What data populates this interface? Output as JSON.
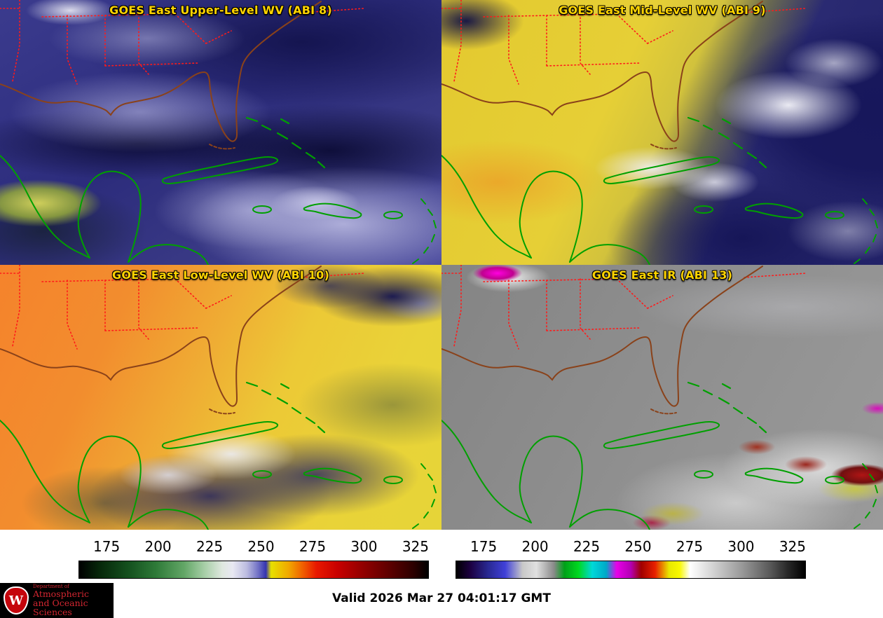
{
  "panels": [
    {
      "id": "abi8",
      "title": "GOES East Upper-Level WV (ABI 8)"
    },
    {
      "id": "abi9",
      "title": "GOES East Mid-Level WV (ABI 9)"
    },
    {
      "id": "abi10",
      "title": "GOES East Low-Level WV (ABI 10)"
    },
    {
      "id": "abi13",
      "title": "GOES East IR (ABI 13)"
    }
  ],
  "colorbars": [
    {
      "id": "wv",
      "ticks": [
        "175",
        "200",
        "225",
        "250",
        "275",
        "300",
        "325"
      ]
    },
    {
      "id": "ir",
      "ticks": [
        "175",
        "200",
        "225",
        "250",
        "275",
        "300",
        "325"
      ]
    }
  ],
  "footer": {
    "valid_time": "Valid 2026 Mar 27 04:01:17 GMT",
    "logo": {
      "initial": "W",
      "dept": "Department of",
      "line1": "Atmospheric",
      "line2": "and Oceanic Sciences"
    }
  },
  "colors": {
    "panel_title": "#ffd400",
    "state_border": "#ff1a1a",
    "us_coastline": "#8a421a",
    "island_coastline": "#00a000",
    "logo_red": "#d22630",
    "crest_red": "#c5050c"
  }
}
